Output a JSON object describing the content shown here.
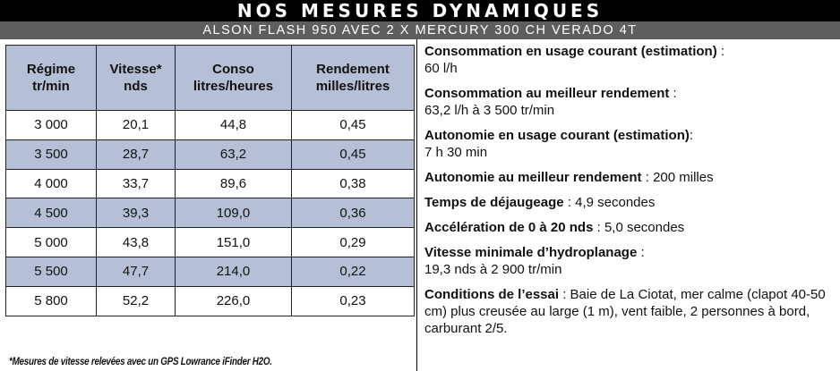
{
  "header": {
    "title": "NOS MESURES DYNAMIQUES",
    "subtitle": "ALSON FLASH 950 AVEC 2 X MERCURY 300 CH VERADO 4T"
  },
  "table": {
    "headers": [
      [
        "Régime",
        "tr/min"
      ],
      [
        "Vitesse*",
        "nds"
      ],
      [
        "Conso",
        "litres/heures"
      ],
      [
        "Rendement",
        "milles/litres"
      ]
    ],
    "rows": [
      [
        "3 000",
        "20,1",
        "44,8",
        "0,45"
      ],
      [
        "3 500",
        "28,7",
        "63,2",
        "0,45"
      ],
      [
        "4 000",
        "33,7",
        "89,6",
        "0,38"
      ],
      [
        "4 500",
        "39,3",
        "109,0",
        "0,36"
      ],
      [
        "5 000",
        "43,8",
        "151,0",
        "0,29"
      ],
      [
        "5 500",
        "47,7",
        "214,0",
        "0,22"
      ],
      [
        "5 800",
        "52,2",
        "226,0",
        "0,23"
      ]
    ],
    "footnote": "*Mesures de vitesse relevées avec un GPS Lowrance iFinder H2O.",
    "alt_row_color": "#b5c0d6"
  },
  "specs": [
    {
      "label": "Consommation en usage courant (estimation)",
      "sep": " :",
      "value": "60 l/h",
      "break": true
    },
    {
      "label": "Consommation au meilleur rendement",
      "sep": " :",
      "value": "63,2 l/h à 3 500 tr/min",
      "break": true
    },
    {
      "label": "Autonomie en usage courant (estimation)",
      "sep": ":",
      "value": "7 h 30 min",
      "break": true
    },
    {
      "label": "Autonomie au meilleur rendement",
      "sep": " : ",
      "value": "200 milles",
      "break": false
    },
    {
      "label": "Temps de déjaugeage",
      "sep": " : ",
      "value": "4,9 secondes",
      "break": false
    },
    {
      "label": "Accélération de 0 à 20 nds",
      "sep": " : ",
      "value": "5,0 secondes",
      "break": false
    },
    {
      "label": "Vitesse minimale d’hydroplanage",
      "sep": " :",
      "value": "19,3 nds à 2 900 tr/min",
      "break": true
    },
    {
      "label": "Conditions de l’essai",
      "sep": " : ",
      "value": "Baie de La Ciotat, mer calme (clapot 40-50 cm) plus creusée au large (1 m), vent faible, 2 personnes à bord, carburant 2/5.",
      "break": false
    }
  ]
}
